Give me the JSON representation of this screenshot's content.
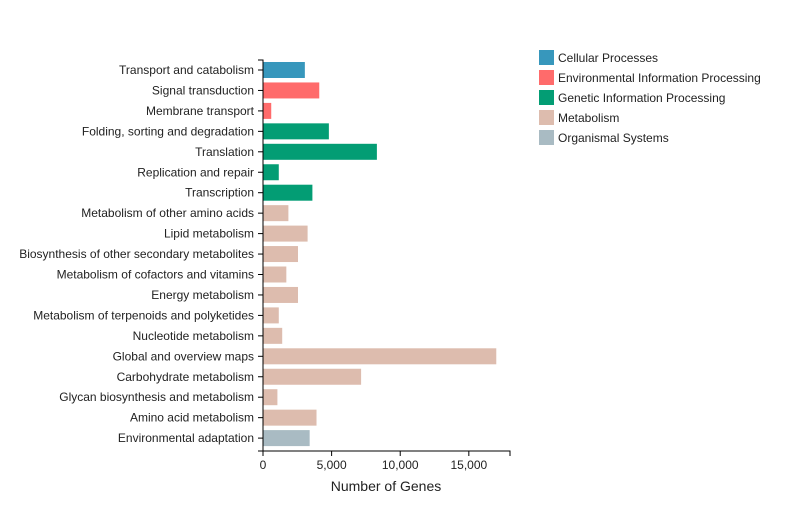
{
  "chart_data": {
    "type": "bar",
    "orientation": "horizontal",
    "xlabel": "Number of Genes",
    "ylabel": "",
    "xlim": [
      0,
      18000
    ],
    "xticks": [
      0,
      5000,
      10000,
      15000
    ],
    "xtick_labels": [
      "0",
      "5,000",
      "10,000",
      "15,000"
    ],
    "legend_position": "top-right",
    "groups": [
      {
        "name": "Cellular Processes",
        "color": "#3797BC"
      },
      {
        "name": "Environmental Information Processing",
        "color": "#FF6B6B"
      },
      {
        "name": "Genetic Information Processing",
        "color": "#039D74"
      },
      {
        "name": "Metabolism",
        "color": "#DDBCAE"
      },
      {
        "name": "Organismal Systems",
        "color": "#A9BBC3"
      }
    ],
    "bars": [
      {
        "label": "Transport and catabolism",
        "value": 3050,
        "group": 0
      },
      {
        "label": "Signal transduction",
        "value": 4100,
        "group": 1
      },
      {
        "label": "Membrane transport",
        "value": 600,
        "group": 1
      },
      {
        "label": "Folding, sorting and degradation",
        "value": 4800,
        "group": 2
      },
      {
        "label": "Translation",
        "value": 8300,
        "group": 2
      },
      {
        "label": "Replication and repair",
        "value": 1150,
        "group": 2
      },
      {
        "label": "Transcription",
        "value": 3600,
        "group": 2
      },
      {
        "label": "Metabolism of other amino acids",
        "value": 1850,
        "group": 3
      },
      {
        "label": "Lipid metabolism",
        "value": 3250,
        "group": 3
      },
      {
        "label": "Biosynthesis of other secondary metabolites",
        "value": 2550,
        "group": 3
      },
      {
        "label": "Metabolism of cofactors and vitamins",
        "value": 1700,
        "group": 3
      },
      {
        "label": "Energy metabolism",
        "value": 2550,
        "group": 3
      },
      {
        "label": "Metabolism of terpenoids and polyketides",
        "value": 1150,
        "group": 3
      },
      {
        "label": "Nucleotide metabolism",
        "value": 1400,
        "group": 3
      },
      {
        "label": "Global and overview maps",
        "value": 17000,
        "group": 3
      },
      {
        "label": "Carbohydrate metabolism",
        "value": 7150,
        "group": 3
      },
      {
        "label": "Glycan biosynthesis and metabolism",
        "value": 1050,
        "group": 3
      },
      {
        "label": "Amino acid metabolism",
        "value": 3900,
        "group": 3
      },
      {
        "label": "Environmental adaptation",
        "value": 3400,
        "group": 4
      }
    ]
  }
}
